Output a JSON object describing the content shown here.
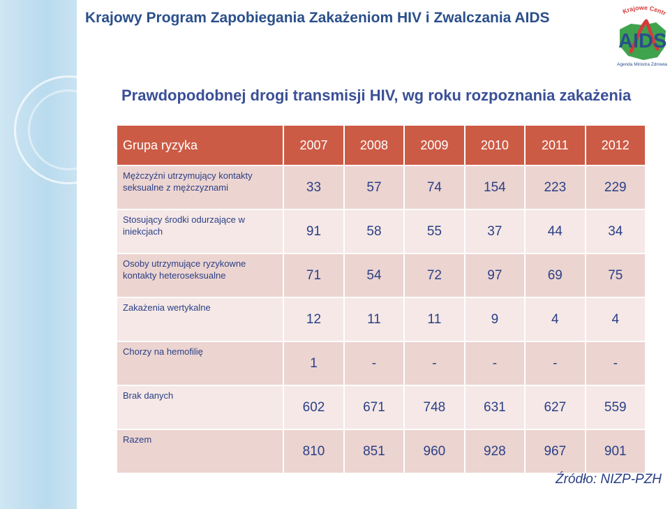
{
  "header": {
    "title": "Krajowy Program Zapobiegania Zakażeniom HIV i Zwalczania AIDS"
  },
  "logo": {
    "arc_text": "Krajowe Centrum ds.",
    "main_text": "AIDS",
    "subtitle": "Agenda Ministra Zdrowia",
    "icon": "aids-logo",
    "colors": {
      "aids": "#2a4f8a",
      "map": "#3fa34d",
      "ribbon": "#d43c3c"
    }
  },
  "slide": {
    "title": "Prawdopodobnej drogi transmisji HIV,  wg roku rozpoznania zakażenia"
  },
  "table": {
    "header": [
      "Grupa ryzyka",
      "2007",
      "2008",
      "2009",
      "2010",
      "2011",
      "2012"
    ],
    "rows": [
      {
        "label": "Mężczyźni utrzymujący kontakty seksualne z mężczyznami",
        "values": [
          "33",
          "57",
          "74",
          "154",
          "223",
          "229"
        ]
      },
      {
        "label": "Stosujący środki odurzające w iniekcjach",
        "values": [
          "91",
          "58",
          "55",
          "37",
          "44",
          "34"
        ]
      },
      {
        "label": "Osoby utrzymujące ryzykowne kontakty  heteroseksualne",
        "values": [
          "71",
          "54",
          "72",
          "97",
          "69",
          "75"
        ]
      },
      {
        "label": "Zakażenia wertykalne",
        "values": [
          "12",
          "11",
          "11",
          "9",
          "4",
          "4"
        ]
      },
      {
        "label": "Chorzy na hemofilię",
        "values": [
          "1",
          "-",
          "-",
          "-",
          "-",
          "-"
        ]
      },
      {
        "label": "Brak danych",
        "values": [
          "602",
          "671",
          "748",
          "631",
          "627",
          "559"
        ]
      },
      {
        "label": "Razem",
        "values": [
          "810",
          "851",
          "960",
          "928",
          "967",
          "901"
        ]
      }
    ]
  },
  "source": "Źródło: NIZP-PZH",
  "colors": {
    "header_fill": "#cc5b45",
    "row_dark": "#ecd4d0",
    "row_light": "#f5e8e6",
    "text": "#2a3f86"
  }
}
